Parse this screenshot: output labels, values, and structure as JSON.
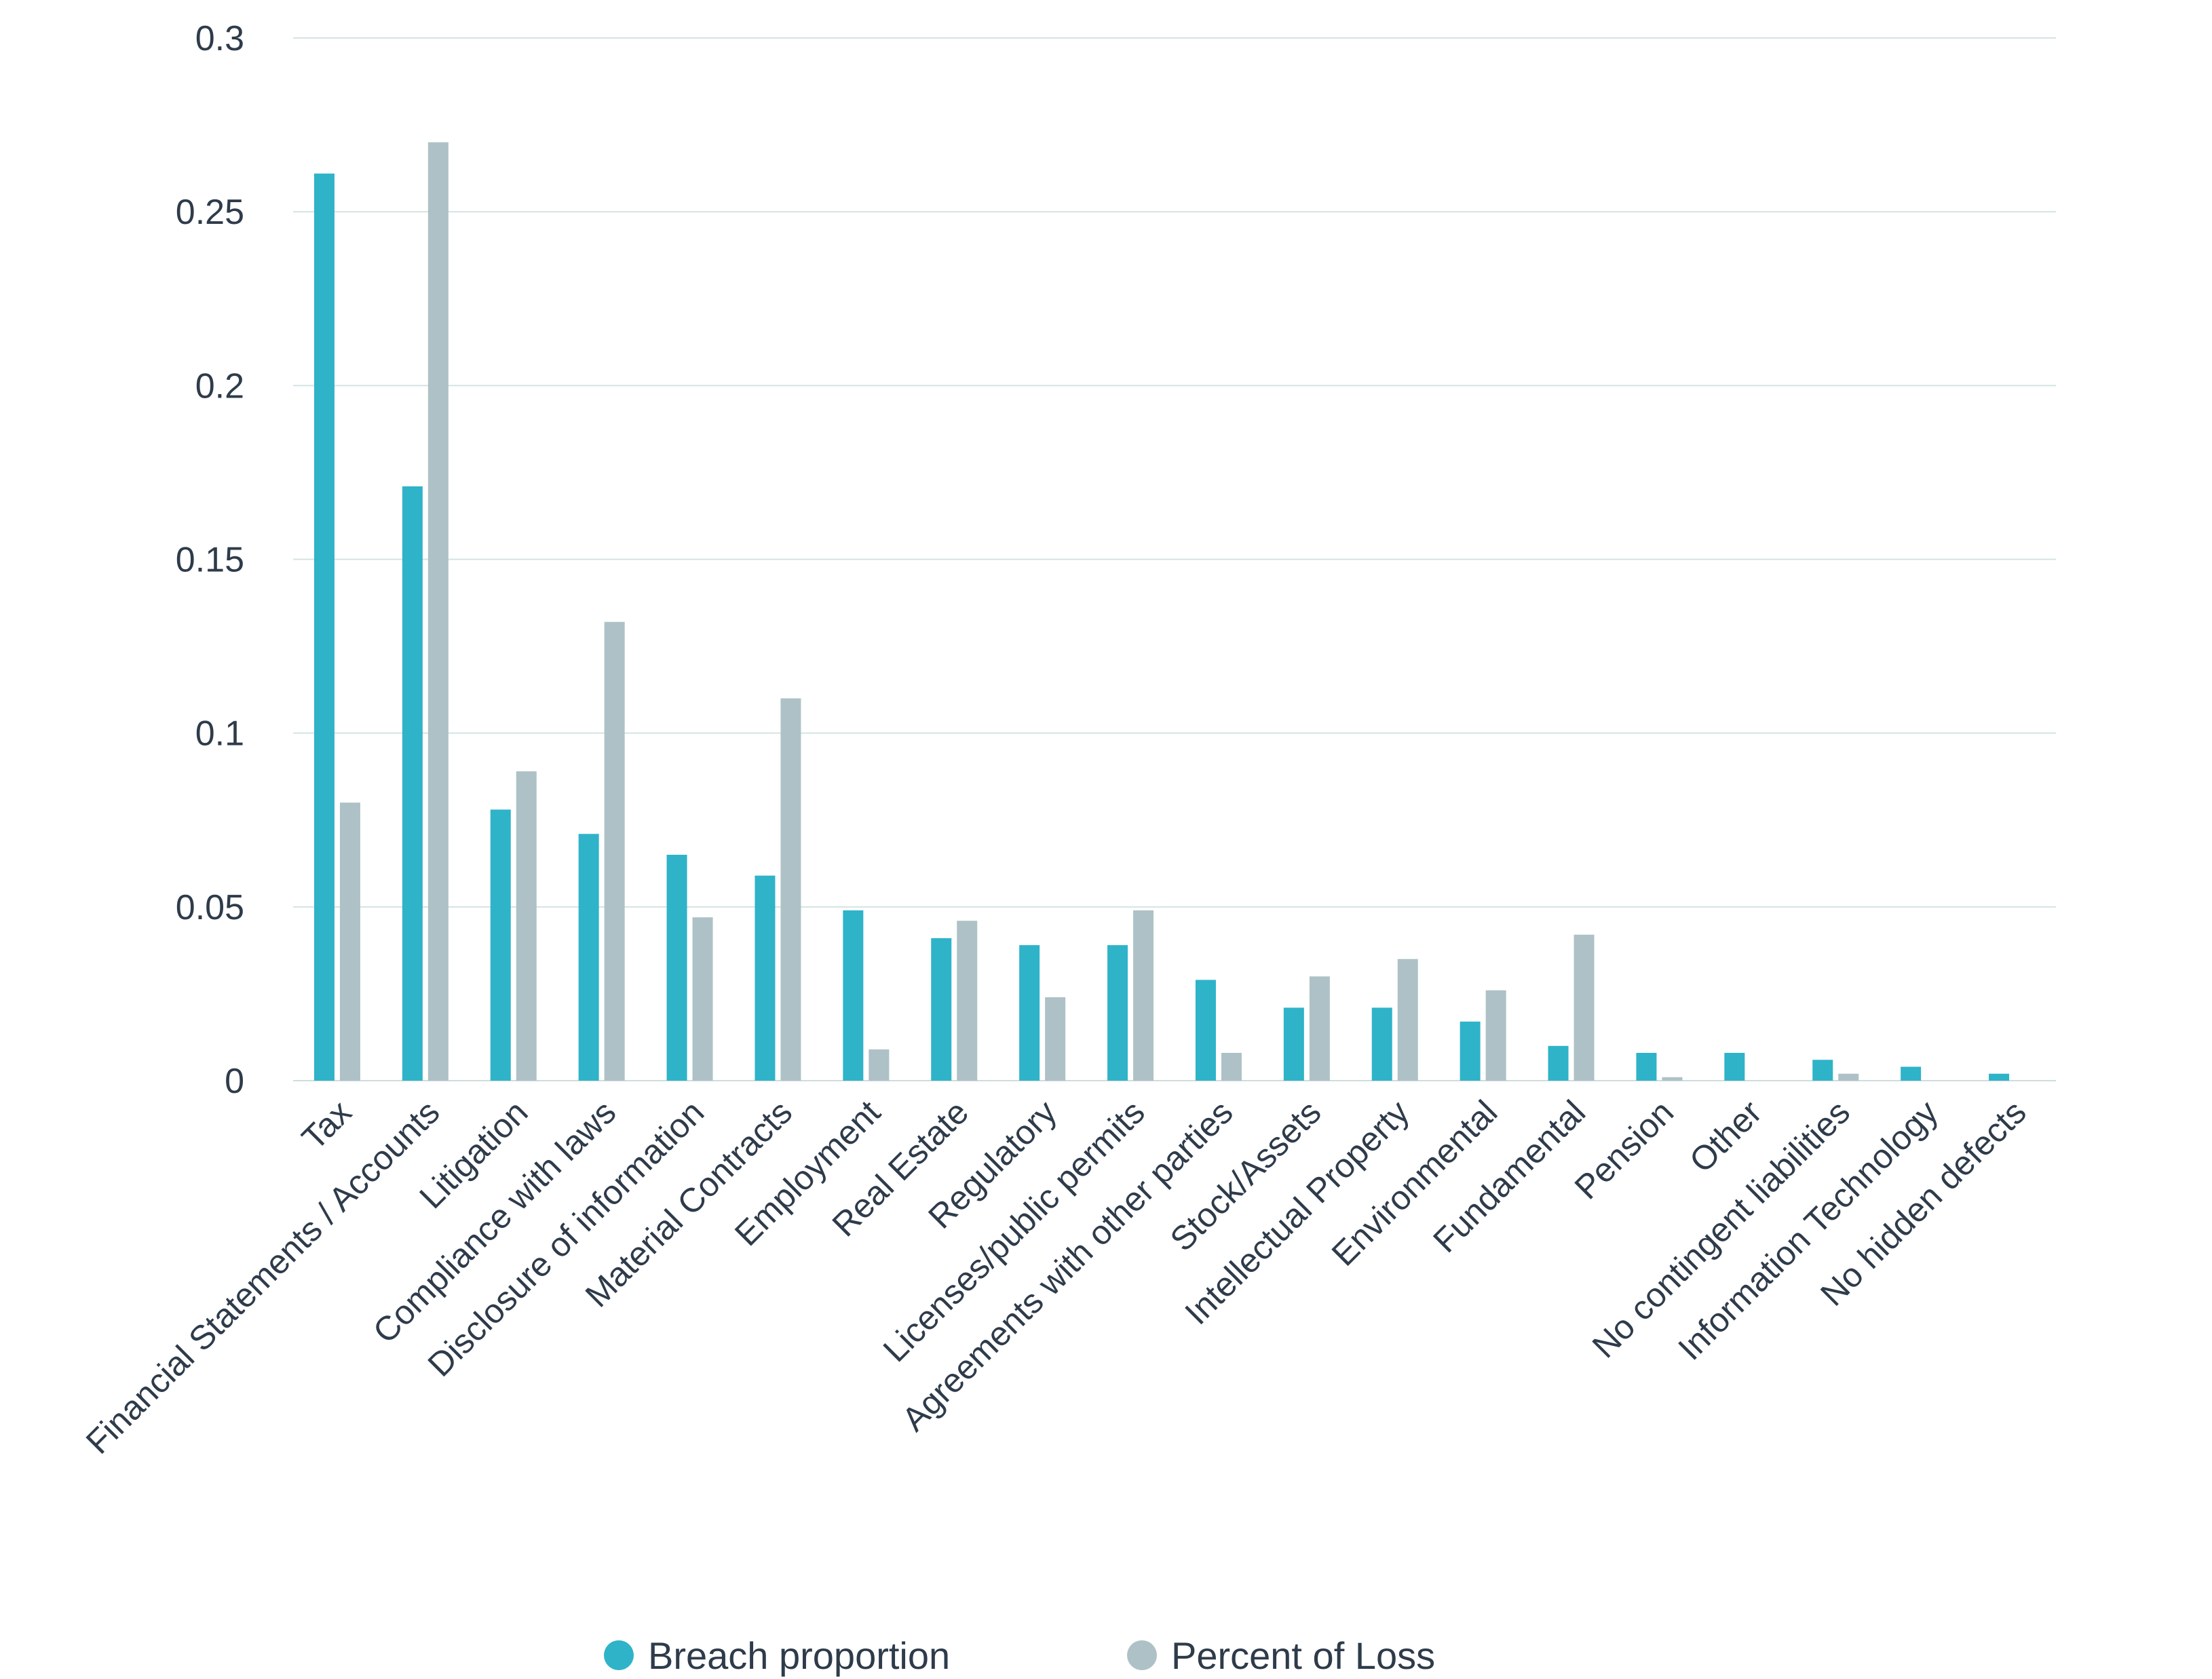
{
  "chart_data": {
    "type": "bar",
    "title": "",
    "xlabel": "",
    "ylabel": "",
    "ylim": [
      0,
      0.3
    ],
    "y_ticks": [
      "0",
      "0.05",
      "0.1",
      "0.15",
      "0.2",
      "0.25",
      "0.3"
    ],
    "y_tick_values": [
      0,
      0.05,
      0.1,
      0.15,
      0.2,
      0.25,
      0.3
    ],
    "grid": true,
    "legend_position": "bottom-center",
    "categories": [
      "Tax",
      "Financial Statements / Accounts",
      "Litigation",
      "Compliance with laws",
      "Disclosure of information",
      "Material Contracts",
      "Employment",
      "Real Estate",
      "Regulatory",
      "Licenses/public permits",
      "Agreements with other parties",
      "Stock/Assets",
      "Intellectual Property",
      "Environmental",
      "Fundamental",
      "Pension",
      "Other",
      "No contingent liabilities",
      "Information Technology",
      "No hidden defects"
    ],
    "series": [
      {
        "name": "Breach proportion",
        "color": "#2fb3c8",
        "values": [
          0.261,
          0.171,
          0.078,
          0.071,
          0.065,
          0.059,
          0.049,
          0.041,
          0.039,
          0.039,
          0.029,
          0.021,
          0.021,
          0.017,
          0.01,
          0.008,
          0.008,
          0.006,
          0.004,
          0.002
        ]
      },
      {
        "name": "Percent of Loss",
        "color": "#aec1c6",
        "values": [
          0.08,
          0.27,
          0.089,
          0.132,
          0.047,
          0.11,
          0.009,
          0.046,
          0.024,
          0.049,
          0.008,
          0.03,
          0.035,
          0.026,
          0.042,
          0.001,
          0,
          0.002,
          0,
          0
        ]
      }
    ]
  }
}
